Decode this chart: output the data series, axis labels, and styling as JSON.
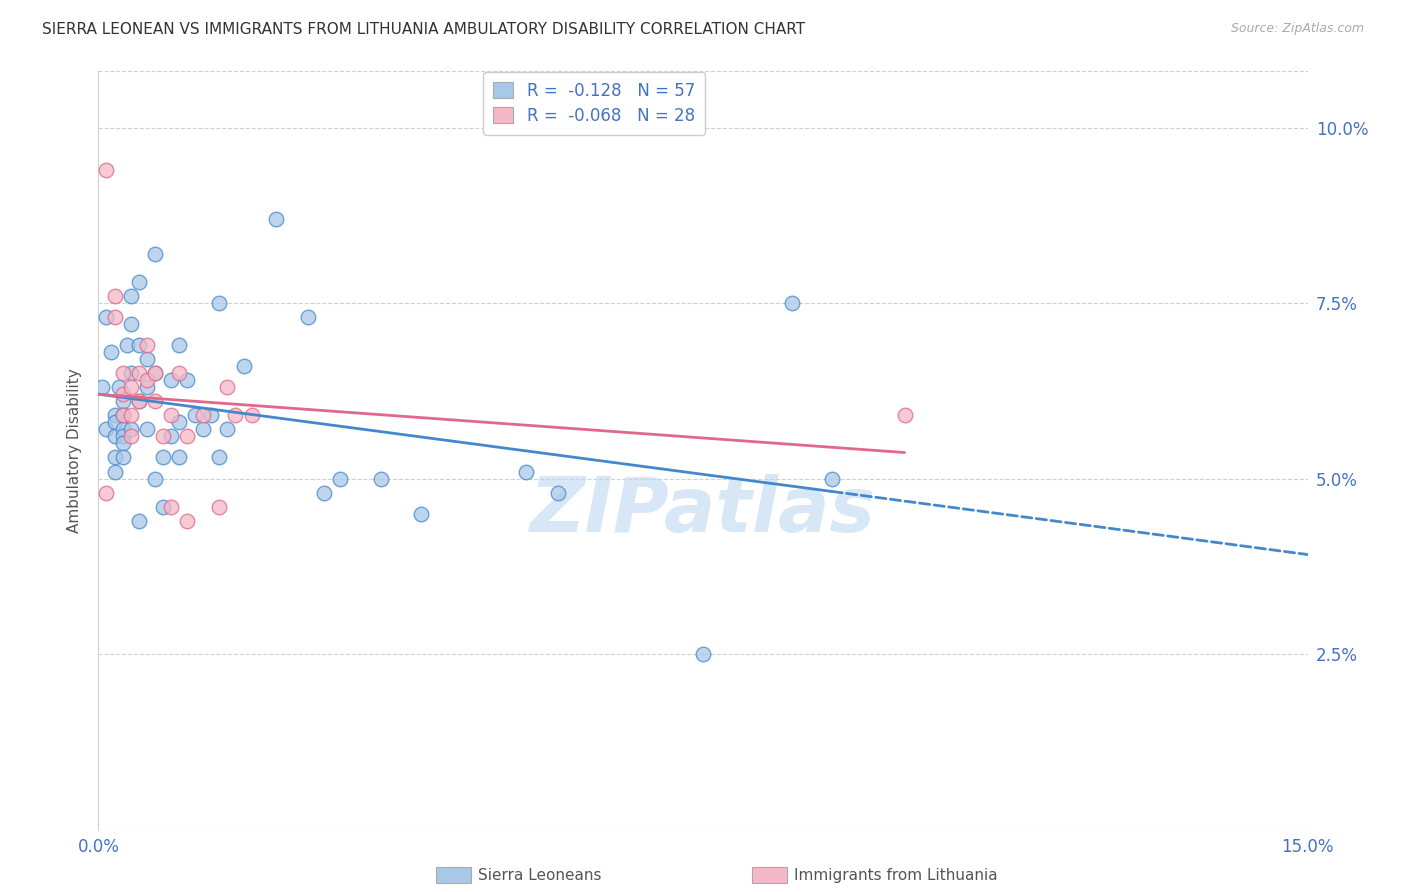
{
  "title": "SIERRA LEONEAN VS IMMIGRANTS FROM LITHUANIA AMBULATORY DISABILITY CORRELATION CHART",
  "source": "Source: ZipAtlas.com",
  "ylabel": "Ambulatory Disability",
  "ytick_labels": [
    "10.0%",
    "7.5%",
    "5.0%",
    "2.5%"
  ],
  "ytick_values": [
    0.1,
    0.075,
    0.05,
    0.025
  ],
  "xmin": 0.0,
  "xmax": 0.15,
  "ymin": 0.0,
  "ymax": 0.108,
  "legend_blue_r": "-0.128",
  "legend_blue_n": "57",
  "legend_pink_r": "-0.068",
  "legend_pink_n": "28",
  "color_blue": "#a8c8e8",
  "color_pink": "#f4b8c8",
  "color_blue_line": "#4488cc",
  "color_pink_line": "#e06888",
  "watermark": "ZIPatlas",
  "blue_points_x": [
    0.0005,
    0.001,
    0.001,
    0.0015,
    0.002,
    0.002,
    0.002,
    0.002,
    0.002,
    0.0025,
    0.003,
    0.003,
    0.003,
    0.003,
    0.003,
    0.003,
    0.0035,
    0.004,
    0.004,
    0.004,
    0.004,
    0.005,
    0.005,
    0.005,
    0.005,
    0.006,
    0.006,
    0.006,
    0.007,
    0.007,
    0.007,
    0.008,
    0.008,
    0.009,
    0.009,
    0.01,
    0.01,
    0.01,
    0.011,
    0.012,
    0.013,
    0.014,
    0.015,
    0.015,
    0.016,
    0.018,
    0.022,
    0.026,
    0.028,
    0.03,
    0.035,
    0.04,
    0.053,
    0.057,
    0.086,
    0.091,
    0.075
  ],
  "blue_points_y": [
    0.063,
    0.057,
    0.073,
    0.068,
    0.059,
    0.058,
    0.056,
    0.053,
    0.051,
    0.063,
    0.061,
    0.059,
    0.057,
    0.056,
    0.055,
    0.053,
    0.069,
    0.076,
    0.072,
    0.065,
    0.057,
    0.078,
    0.069,
    0.061,
    0.044,
    0.067,
    0.063,
    0.057,
    0.082,
    0.065,
    0.05,
    0.053,
    0.046,
    0.056,
    0.064,
    0.069,
    0.058,
    0.053,
    0.064,
    0.059,
    0.057,
    0.059,
    0.075,
    0.053,
    0.057,
    0.066,
    0.087,
    0.073,
    0.048,
    0.05,
    0.05,
    0.045,
    0.051,
    0.048,
    0.075,
    0.05,
    0.025
  ],
  "pink_points_x": [
    0.001,
    0.001,
    0.002,
    0.002,
    0.003,
    0.003,
    0.003,
    0.004,
    0.004,
    0.004,
    0.005,
    0.005,
    0.006,
    0.006,
    0.007,
    0.007,
    0.008,
    0.009,
    0.009,
    0.01,
    0.011,
    0.011,
    0.013,
    0.015,
    0.016,
    0.017,
    0.019,
    0.1
  ],
  "pink_points_y": [
    0.094,
    0.048,
    0.076,
    0.073,
    0.065,
    0.062,
    0.059,
    0.063,
    0.059,
    0.056,
    0.065,
    0.061,
    0.069,
    0.064,
    0.065,
    0.061,
    0.056,
    0.059,
    0.046,
    0.065,
    0.056,
    0.044,
    0.059,
    0.046,
    0.063,
    0.059,
    0.059,
    0.059
  ]
}
